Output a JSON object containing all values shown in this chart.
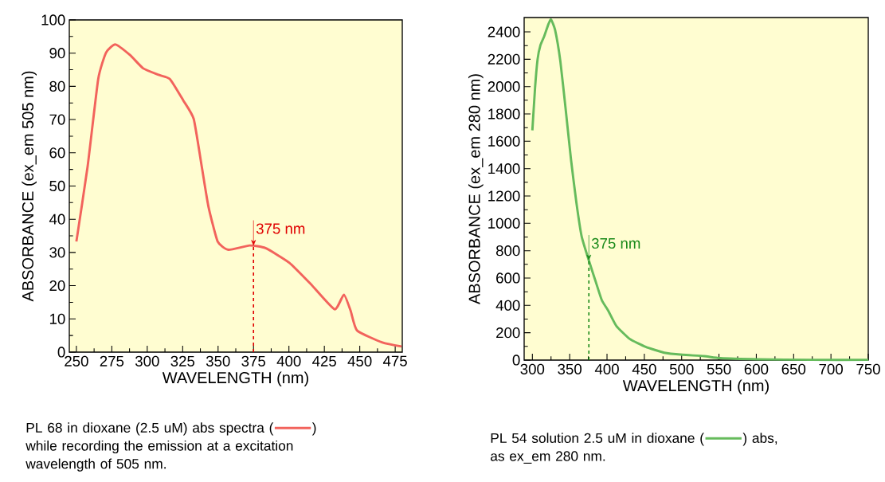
{
  "chart_data": [
    {
      "type": "line",
      "xlabel": "WAVELENGTH (nm)",
      "ylabel": "ABSORBANCE (ex_em 505 nm)",
      "x": [
        250,
        257.9,
        265.4,
        271,
        277.6,
        287.9,
        297.2,
        308.5,
        316,
        325.4,
        332.8,
        338.5,
        343.2,
        349.7,
        357.3,
        372.2,
        383.5,
        400.3,
        415.4,
        432.2,
        438.8,
        443.5,
        448.1,
        466,
        479.5
      ],
      "series": [
        {
          "color": "#f2635c",
          "values": [
            33.3,
            55.8,
            82.2,
            90.2,
            92.6,
            89.4,
            85.4,
            83.4,
            82.2,
            75.8,
            70.2,
            55.8,
            43.8,
            33.3,
            30.8,
            32.1,
            31.3,
            26.9,
            20.5,
            12.9,
            17.3,
            12.5,
            6.5,
            2.9,
            1.7
          ]
        }
      ],
      "xlim": [
        245,
        480
      ],
      "ylim": [
        0,
        100
      ],
      "xticks": [
        250,
        275,
        300,
        325,
        350,
        375,
        400,
        425,
        450,
        475
      ],
      "yticks": [
        0,
        10,
        20,
        30,
        40,
        50,
        60,
        70,
        80,
        90,
        100
      ],
      "annotations": [
        {
          "text": "375 nm",
          "x": 375,
          "y": 32
        },
        "PL 68 in dioxane (2.5 uM) abs spectra (",
        ")",
        "while recording the emission at a excitation wavelength of 505 nm."
      ]
    },
    {
      "type": "line",
      "xlabel": "WAVELENGTH (nm)",
      "ylabel": "ABSORBANCE (ex_em 280 nm)",
      "x": [
        300,
        303.6,
        307,
        310.7,
        316,
        321.4,
        325,
        330.4,
        337.5,
        344.6,
        351.8,
        358.9,
        366,
        375.7,
        383.9,
        392.9,
        401.8,
        412.5,
        430.4,
        451.8,
        476.8,
        501,
        530,
        551.8,
        601.8,
        673,
        750
      ],
      "series": [
        {
          "color": "#66bb5c",
          "values": [
            1680,
            1990,
            2200,
            2300,
            2370,
            2455,
            2490,
            2415,
            2185,
            1835,
            1465,
            1155,
            905,
            728,
            590,
            440,
            360,
            250,
            155,
            97,
            54,
            39,
            29,
            14,
            6,
            2,
            2
          ]
        }
      ],
      "xlim": [
        289,
        750
      ],
      "ylim": [
        0,
        2505
      ],
      "xticks": [
        300,
        350,
        400,
        450,
        500,
        550,
        600,
        650,
        700,
        750
      ],
      "yticks": [
        0,
        200,
        400,
        600,
        800,
        1000,
        1200,
        1400,
        1600,
        1800,
        2000,
        2200,
        2400
      ],
      "annotations": [
        {
          "text": "375 nm",
          "x": 375.7,
          "y": 728
        },
        "PL 54 solution 2.5 uM in dioxane (",
        ") abs,",
        "as ex_em 280 nm."
      ]
    }
  ]
}
